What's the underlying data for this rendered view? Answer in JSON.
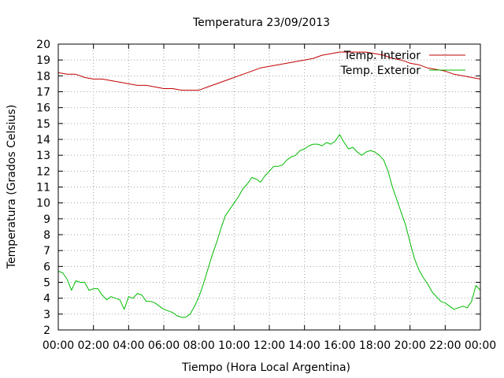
{
  "chart_data": {
    "type": "line",
    "title": "Temperatura 23/09/2013",
    "xlabel": "Tiempo (Hora Local Argentina)",
    "ylabel": "Temperatura (Grados Celsius)",
    "xlim": [
      0,
      24
    ],
    "ylim": [
      2,
      20
    ],
    "x_unit": "hours",
    "grid": true,
    "legend_position": "top-right",
    "x_ticks": [
      {
        "value": 0,
        "label": "00:00"
      },
      {
        "value": 2,
        "label": "02:00"
      },
      {
        "value": 4,
        "label": "04:00"
      },
      {
        "value": 6,
        "label": "06:00"
      },
      {
        "value": 8,
        "label": "08:00"
      },
      {
        "value": 10,
        "label": "10:00"
      },
      {
        "value": 12,
        "label": "12:00"
      },
      {
        "value": 14,
        "label": "14:00"
      },
      {
        "value": 16,
        "label": "16:00"
      },
      {
        "value": 18,
        "label": "18:00"
      },
      {
        "value": 20,
        "label": "20:00"
      },
      {
        "value": 22,
        "label": "22:00"
      },
      {
        "value": 24,
        "label": "00:00"
      }
    ],
    "y_ticks": [
      2,
      3,
      4,
      5,
      6,
      7,
      8,
      9,
      10,
      11,
      12,
      13,
      14,
      15,
      16,
      17,
      18,
      19,
      20
    ],
    "series": [
      {
        "name": "Temp. Interior",
        "color": "#c00000",
        "x": [
          0,
          0.5,
          1,
          1.5,
          2,
          2.5,
          3,
          3.5,
          4,
          4.5,
          5,
          5.5,
          6,
          6.5,
          7,
          7.5,
          8,
          8.5,
          9,
          9.5,
          10,
          10.5,
          11,
          11.5,
          12,
          12.5,
          13,
          13.5,
          14,
          14.5,
          15,
          15.5,
          16,
          16.5,
          17,
          17.5,
          18,
          18.5,
          19,
          19.5,
          20,
          20.5,
          21,
          21.5,
          22,
          22.5,
          23,
          23.5,
          24
        ],
        "y": [
          18.2,
          18.1,
          18.1,
          17.9,
          17.8,
          17.8,
          17.7,
          17.6,
          17.5,
          17.4,
          17.4,
          17.3,
          17.2,
          17.2,
          17.1,
          17.1,
          17.1,
          17.3,
          17.5,
          17.7,
          17.9,
          18.1,
          18.3,
          18.5,
          18.6,
          18.7,
          18.8,
          18.9,
          19.0,
          19.1,
          19.3,
          19.4,
          19.5,
          19.5,
          19.5,
          19.5,
          19.4,
          19.3,
          19.1,
          19.0,
          18.8,
          18.7,
          18.5,
          18.4,
          18.3,
          18.1,
          18.0,
          17.9,
          17.8
        ]
      },
      {
        "name": "Temp. Exterior",
        "color": "#00bb00",
        "x": [
          0,
          0.25,
          0.5,
          0.75,
          1,
          1.25,
          1.5,
          1.75,
          2,
          2.25,
          2.5,
          2.75,
          3,
          3.25,
          3.5,
          3.75,
          4,
          4.25,
          4.5,
          4.75,
          5,
          5.25,
          5.5,
          5.75,
          6,
          6.25,
          6.5,
          6.75,
          7,
          7.25,
          7.5,
          7.75,
          8,
          8.25,
          8.5,
          8.75,
          9,
          9.25,
          9.5,
          9.75,
          10,
          10.25,
          10.5,
          10.75,
          11,
          11.25,
          11.5,
          11.75,
          12,
          12.25,
          12.5,
          12.75,
          13,
          13.25,
          13.5,
          13.75,
          14,
          14.25,
          14.5,
          14.75,
          15,
          15.25,
          15.5,
          15.75,
          16,
          16.2,
          16.5,
          16.75,
          17,
          17.25,
          17.5,
          17.75,
          18,
          18.25,
          18.5,
          18.75,
          19,
          19.25,
          19.5,
          19.75,
          20,
          20.25,
          20.5,
          20.75,
          21,
          21.25,
          21.5,
          21.75,
          22,
          22.25,
          22.5,
          22.75,
          23,
          23.25,
          23.5,
          23.75,
          24
        ],
        "y": [
          5.7,
          5.6,
          5.2,
          4.5,
          5.1,
          5.0,
          5.0,
          4.5,
          4.6,
          4.6,
          4.2,
          3.9,
          4.1,
          4.0,
          3.9,
          3.3,
          4.1,
          4.0,
          4.3,
          4.2,
          3.8,
          3.8,
          3.7,
          3.5,
          3.3,
          3.2,
          3.1,
          2.9,
          2.8,
          2.8,
          3.0,
          3.5,
          4.1,
          4.9,
          5.8,
          6.7,
          7.5,
          8.4,
          9.2,
          9.6,
          10.0,
          10.4,
          10.9,
          11.2,
          11.6,
          11.5,
          11.3,
          11.7,
          12.0,
          12.3,
          12.3,
          12.4,
          12.7,
          12.9,
          13.0,
          13.3,
          13.4,
          13.6,
          13.7,
          13.7,
          13.6,
          13.8,
          13.7,
          13.9,
          14.3,
          13.9,
          13.4,
          13.5,
          13.2,
          13.0,
          13.2,
          13.3,
          13.2,
          13.0,
          12.7,
          12.0,
          11.0,
          10.2,
          9.4,
          8.6,
          7.5,
          6.5,
          5.8,
          5.3,
          4.9,
          4.4,
          4.1,
          3.8,
          3.7,
          3.5,
          3.3,
          3.4,
          3.5,
          3.4,
          3.8,
          4.8,
          4.5
        ]
      }
    ]
  }
}
